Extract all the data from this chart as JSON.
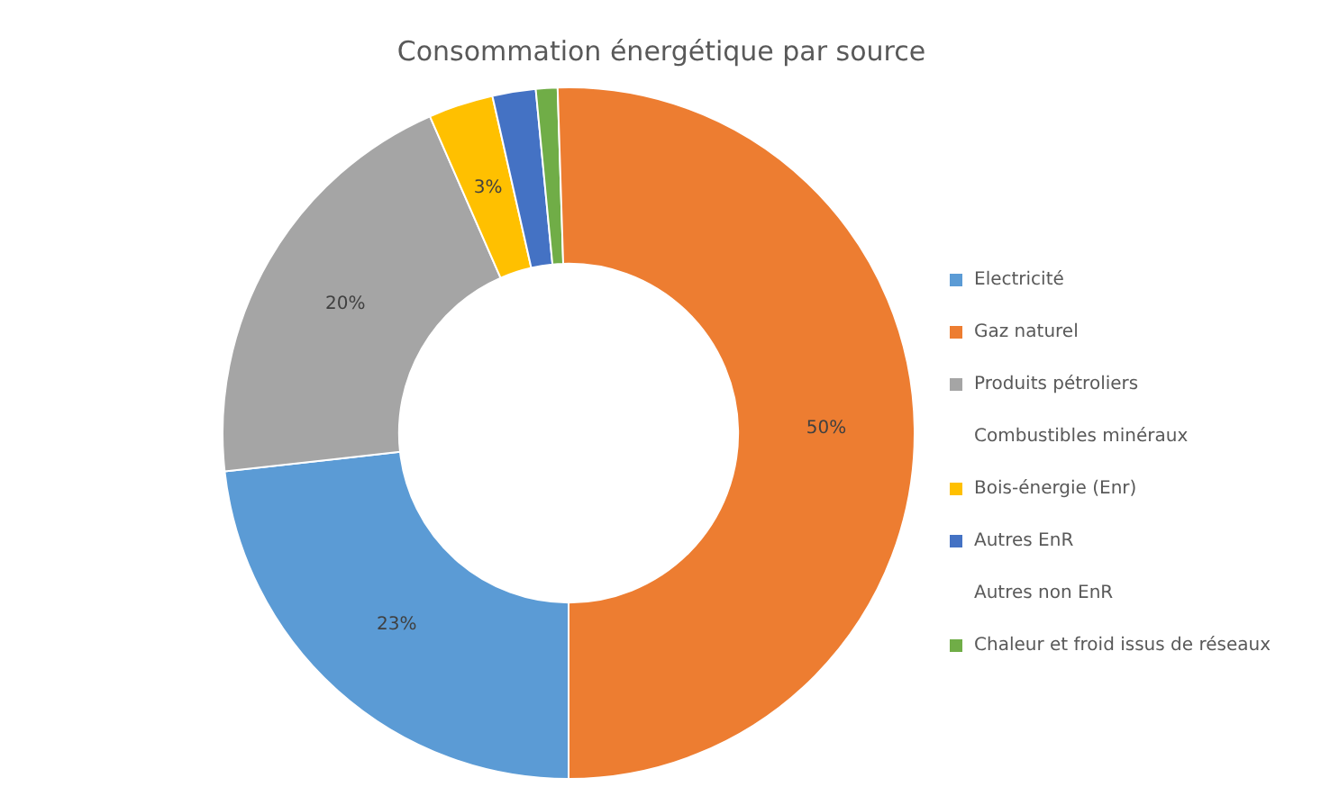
{
  "chart_data": {
    "type": "donut",
    "title": "Consommation énergétique par source",
    "categories": [
      "Electricité",
      "Produits pétroliers",
      "Combustibles minéraux",
      "Bois-énergie (Enr)",
      "Autres EnR",
      "Autres non EnR",
      "Chaleur et froid issus de réseaux",
      "Gaz naturel"
    ],
    "values": [
      23,
      20,
      0,
      3,
      2,
      0,
      1,
      50
    ],
    "colors": [
      "#5b9bd5",
      "#a5a5a5",
      null,
      "#ffc000",
      "#4472c4",
      null,
      "#70ad47",
      "#ed7d31"
    ],
    "value_labels": [
      "23%",
      "20%",
      null,
      "3%",
      null,
      null,
      null,
      "50%"
    ],
    "legend": "right"
  }
}
